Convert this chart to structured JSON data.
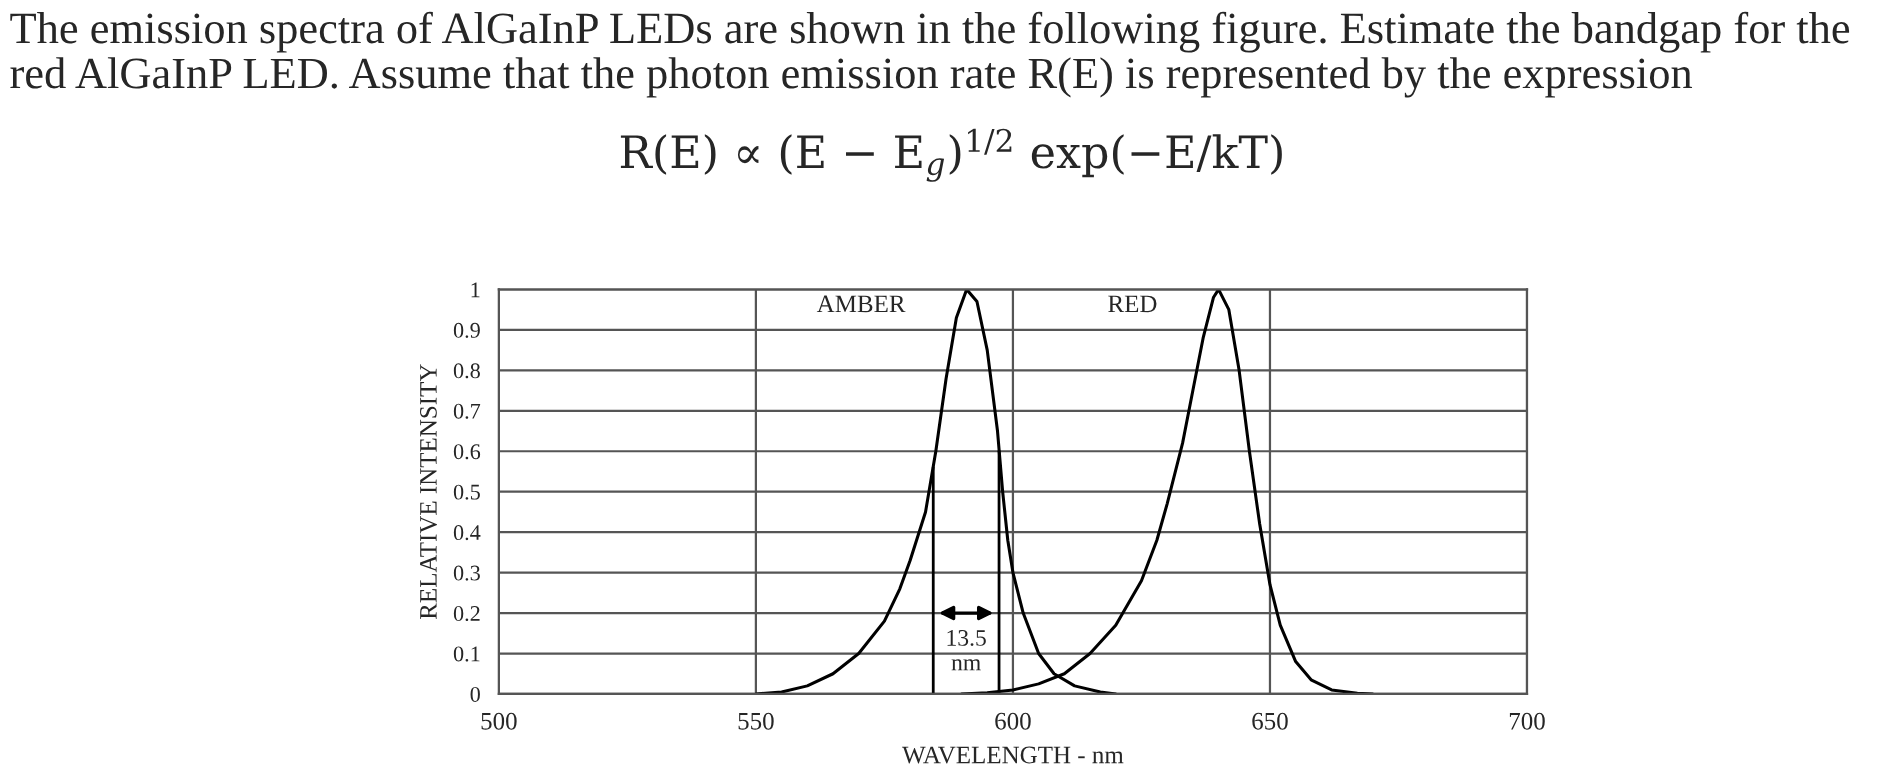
{
  "chart_data": {
    "type": "line",
    "title": "The emission spectra of AlGaInP LEDs are shown in the following figure. Estimate the bandgap for the red AlGaInP LED. Assume that the photon emission rate R(E) is represented by the expression",
    "xlabel": "WAVELENGTH - nm",
    "ylabel": "RELATIVE INTENSITY",
    "series": [
      {
        "name": "AMBER",
        "color": "#000000",
        "x": [
          550,
          555,
          560,
          565,
          570,
          575,
          578,
          580,
          583,
          585,
          587,
          589,
          591,
          593,
          595,
          597,
          598,
          599,
          600,
          602,
          605,
          608,
          612,
          617,
          620
        ],
        "values": [
          0,
          0.005,
          0.02,
          0.05,
          0.1,
          0.18,
          0.26,
          0.33,
          0.45,
          0.6,
          0.78,
          0.93,
          1.0,
          0.97,
          0.85,
          0.65,
          0.5,
          0.38,
          0.3,
          0.2,
          0.1,
          0.05,
          0.02,
          0.005,
          0
        ]
      },
      {
        "name": "RED",
        "color": "#000000",
        "x": [
          590,
          595,
          600,
          605,
          610,
          615,
          620,
          625,
          628,
          630,
          633,
          635,
          637,
          639,
          640,
          642,
          644,
          646,
          648,
          650,
          652,
          655,
          658,
          662,
          667,
          670
        ],
        "values": [
          0,
          0.003,
          0.01,
          0.025,
          0.05,
          0.1,
          0.17,
          0.28,
          0.38,
          0.47,
          0.62,
          0.75,
          0.88,
          0.98,
          1.0,
          0.95,
          0.8,
          0.6,
          0.42,
          0.27,
          0.17,
          0.08,
          0.035,
          0.01,
          0.002,
          0
        ]
      }
    ],
    "annotations": [
      "R(E) ∝ (E − E$_{g}$)$^{1/2}$ exp(−E/kT)",
      {
        "text": "13.5\nnm",
        "x": 584.5,
        "y": 0.56
      }
    ],
    "xlim": [
      500,
      700
    ],
    "xticks": [
      500,
      550,
      600,
      650,
      700
    ],
    "ylim": [
      0,
      1
    ],
    "yticks": [
      0,
      0.1,
      0.2,
      0.3,
      0.4,
      0.5,
      0.6,
      0.7,
      0.8,
      0.9,
      1
    ],
    "grid": true,
    "legend": false,
    "marker": "none",
    "line_style": "solid"
  }
}
